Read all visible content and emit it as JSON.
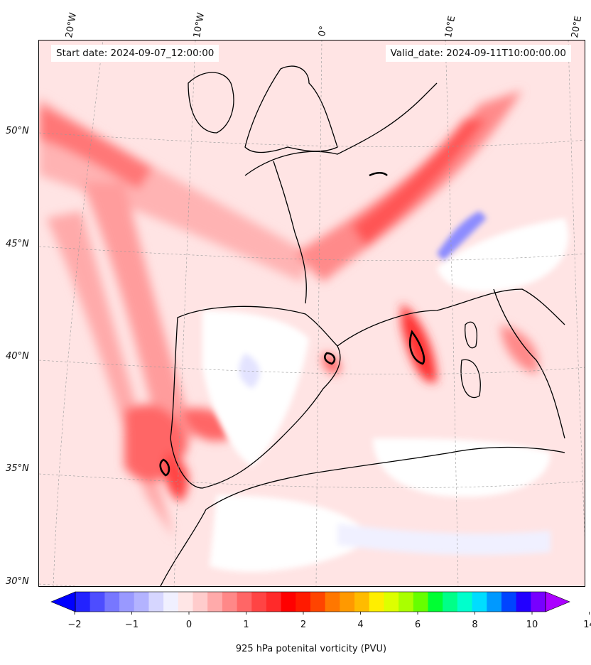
{
  "header": {
    "start_date": "Start date: 2024-09-07_12:00:00",
    "valid_date": "Valid_date: 2024-09-11T10:00:00.00"
  },
  "map": {
    "lon_labels": [
      "20°W",
      "10°W",
      "0°",
      "10°E",
      "20°E"
    ],
    "lat_labels": [
      "50°N",
      "45°N",
      "40°N",
      "35°N",
      "30°N"
    ],
    "features": [
      "Iberian Peninsula",
      "France",
      "British Isles",
      "Italy",
      "Corsica",
      "Sardinia",
      "North Africa"
    ]
  },
  "colorbar": {
    "title": "925 hPa potenital vorticity (PVU)",
    "ticks": [
      "−2",
      "−1",
      "0",
      "1",
      "2",
      "4",
      "6",
      "8",
      "10",
      "14"
    ],
    "colors": [
      "#0000ff",
      "#2222ff",
      "#4d4dff",
      "#7777ff",
      "#9999ff",
      "#b3b3ff",
      "#d6d6ff",
      "#f0f0ff",
      "#ffe6e6",
      "#ffcccc",
      "#ffaaaa",
      "#ff8888",
      "#ff6666",
      "#ff4444",
      "#ff2a2a",
      "#ff0000",
      "#ff1a00",
      "#ff4400",
      "#ff7700",
      "#ff9900",
      "#ffbb00",
      "#ffee00",
      "#ddff00",
      "#aaff00",
      "#66ff00",
      "#00ff33",
      "#00ff88",
      "#00ffcc",
      "#00ddff",
      "#0099ff",
      "#0044ff",
      "#2200ff",
      "#7700ff",
      "#aa00ff"
    ]
  }
}
